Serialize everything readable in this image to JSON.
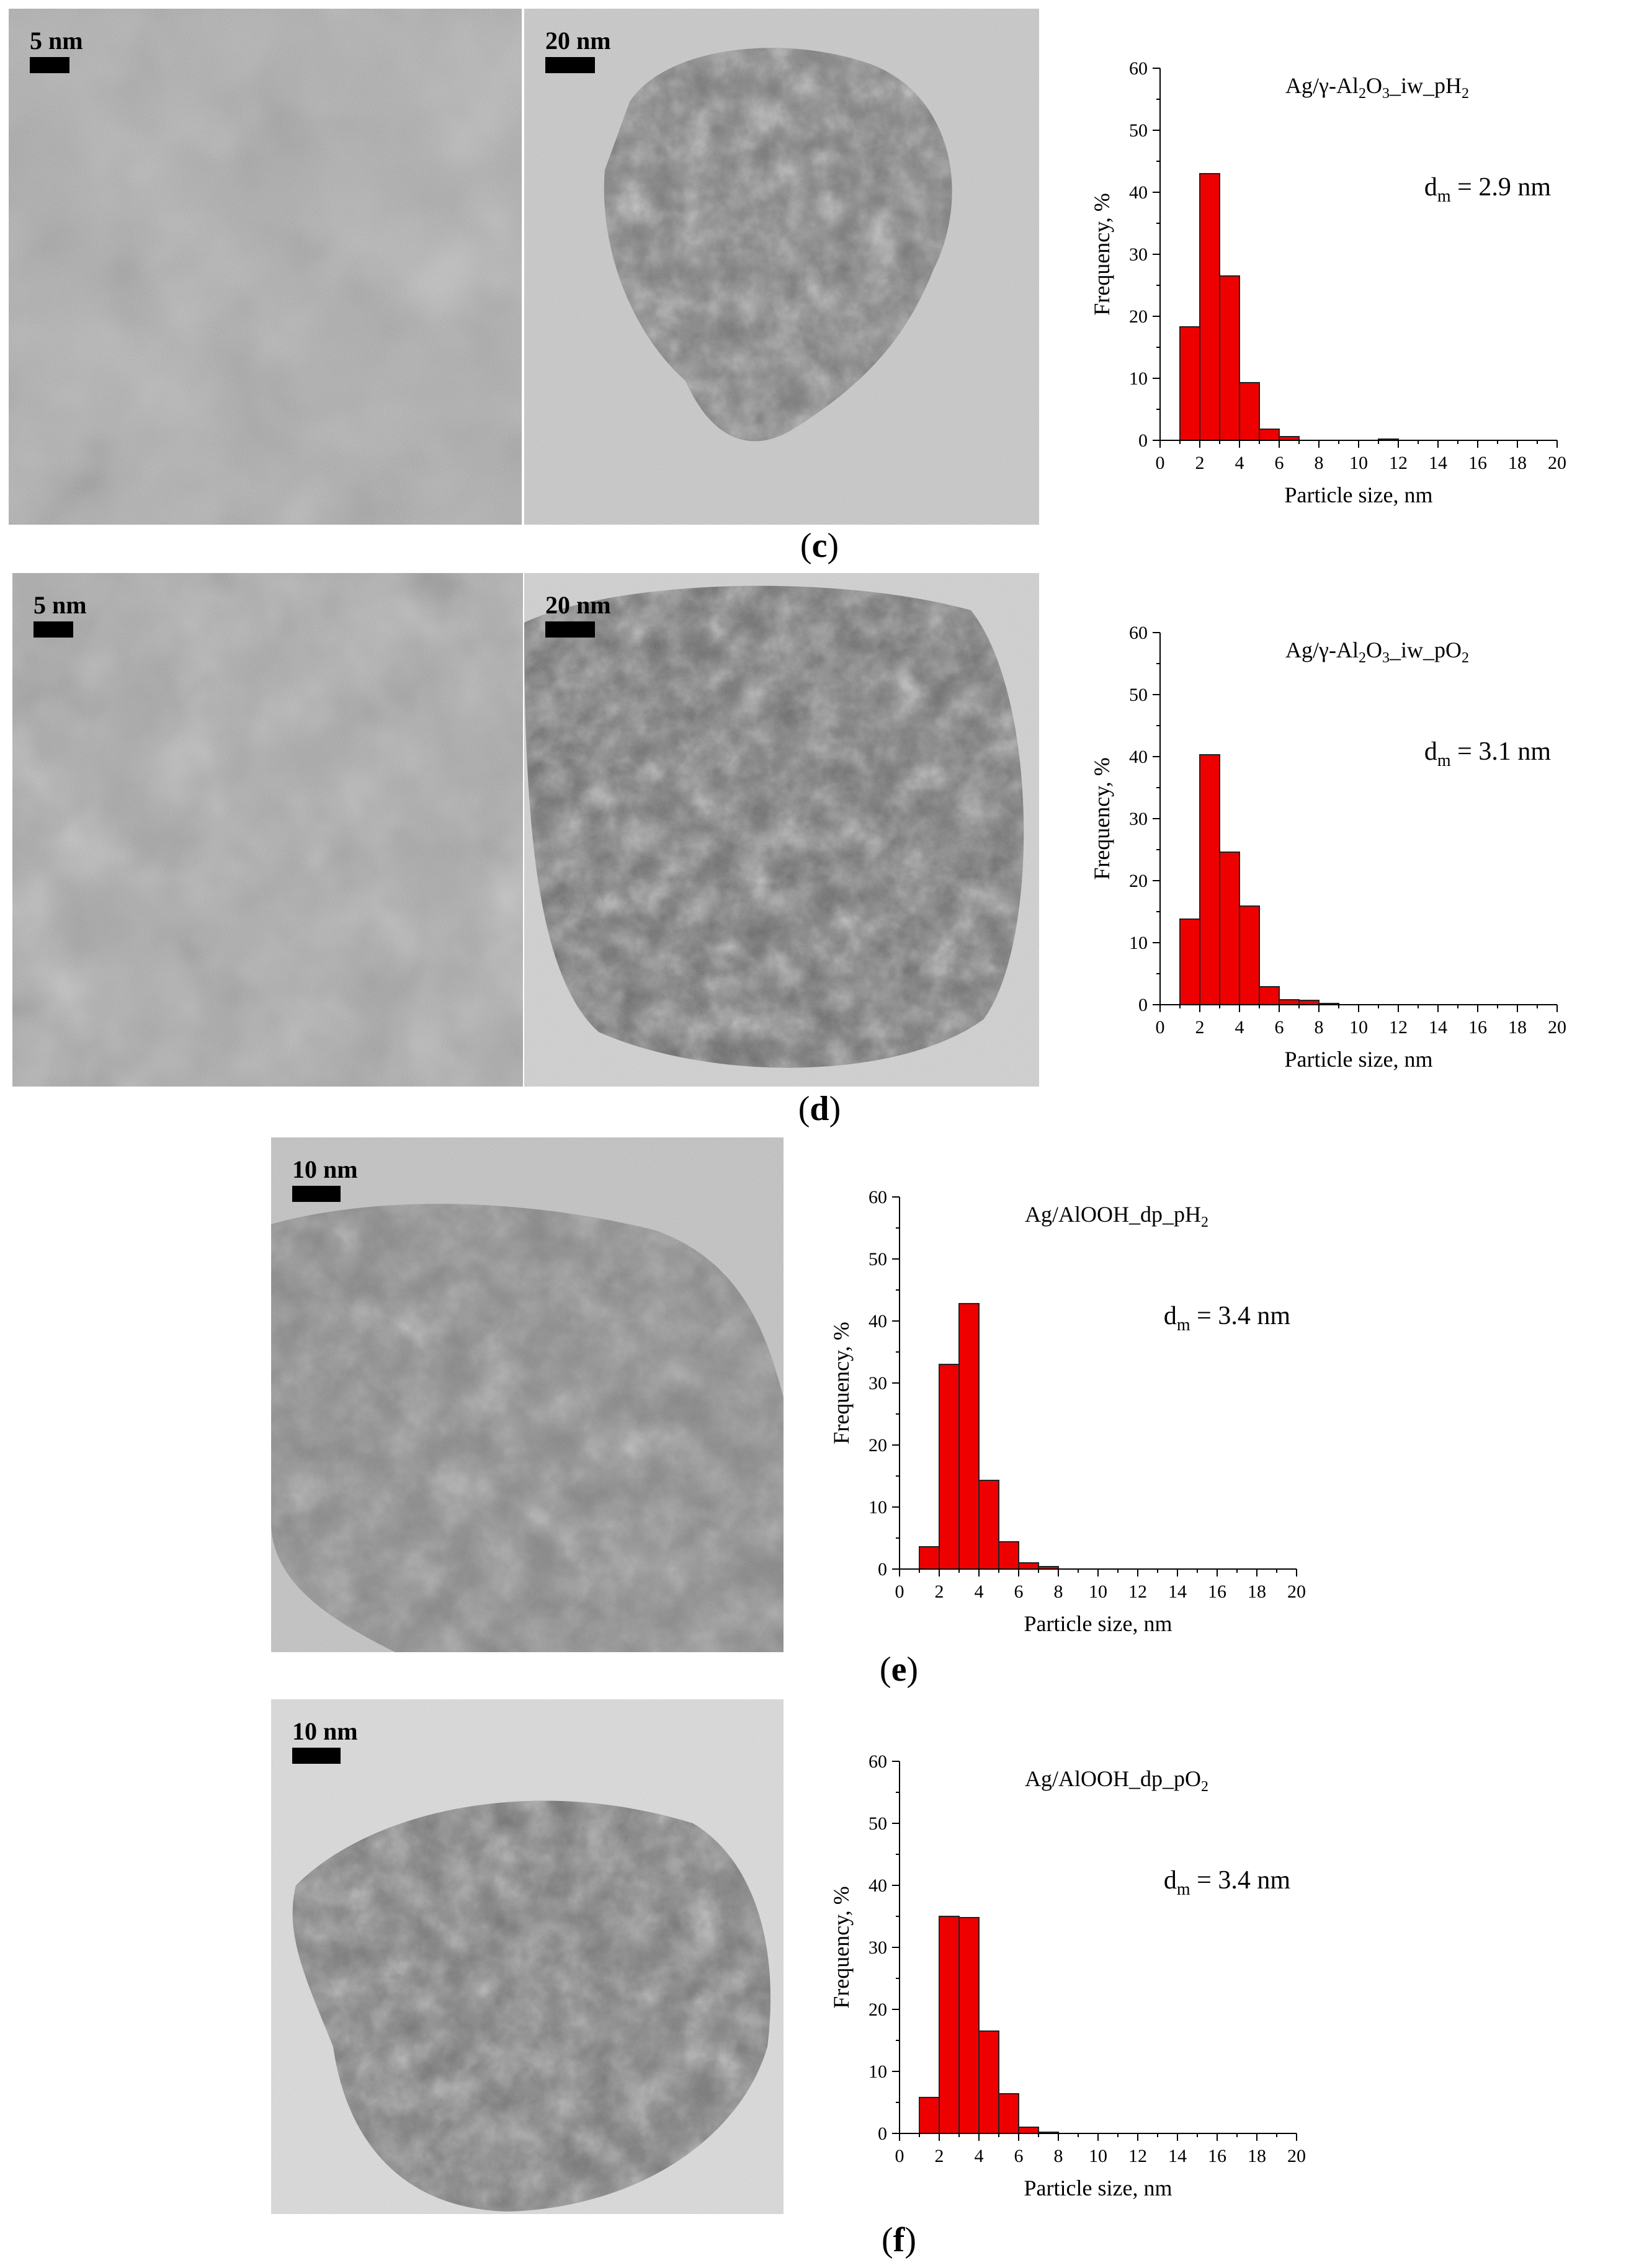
{
  "panels": [
    {
      "id": "c",
      "letter": "c",
      "micrographs": [
        {
          "scale_label": "5 nm",
          "watermark": "5 nm"
        },
        {
          "scale_label": "20 nm",
          "watermark": "20 nm"
        }
      ],
      "chart_data": {
        "type": "bar",
        "sample_prefix": "Ag/γ-Al",
        "sample_parts": [
          [
            "Ag/γ-Al",
            ""
          ],
          [
            "2",
            "sub"
          ],
          [
            "O",
            ""
          ],
          [
            "3",
            "sub"
          ],
          [
            "_iw_pH",
            ""
          ],
          [
            "2",
            "sub"
          ]
        ],
        "dm_text": "= 2.9 nm",
        "dm_symbol": "d",
        "dm_sub": "m",
        "xlabel": "Particle size, nm",
        "ylabel": "Frequency, %",
        "xlim": [
          0,
          20
        ],
        "ylim": [
          0,
          60
        ],
        "xticks": [
          0,
          2,
          4,
          6,
          8,
          10,
          12,
          14,
          16,
          18,
          20
        ],
        "yticks": [
          0,
          10,
          20,
          30,
          40,
          50,
          60
        ],
        "bin_width": 1,
        "bins": [
          {
            "x": 1.5,
            "y": 18.3
          },
          {
            "x": 2.5,
            "y": 43.0
          },
          {
            "x": 3.5,
            "y": 26.5
          },
          {
            "x": 4.5,
            "y": 9.3
          },
          {
            "x": 5.5,
            "y": 1.8
          },
          {
            "x": 6.5,
            "y": 0.6
          },
          {
            "x": 11.5,
            "y": 0.2
          }
        ]
      }
    },
    {
      "id": "d",
      "letter": "d",
      "micrographs": [
        {
          "scale_label": "5 nm",
          "watermark": "5 nm"
        },
        {
          "scale_label": "20 nm",
          "watermark": "20 nm"
        }
      ],
      "chart_data": {
        "type": "bar",
        "sample_parts": [
          [
            "Ag/γ-Al",
            ""
          ],
          [
            "2",
            "sub"
          ],
          [
            "O",
            ""
          ],
          [
            "3",
            "sub"
          ],
          [
            "_iw_pO",
            ""
          ],
          [
            "2",
            "sub"
          ]
        ],
        "dm_text": "= 3.1 nm",
        "dm_symbol": "d",
        "dm_sub": "m",
        "xlabel": "Particle size, nm",
        "ylabel": "Frequency, %",
        "xlim": [
          0,
          20
        ],
        "ylim": [
          0,
          60
        ],
        "xticks": [
          0,
          2,
          4,
          6,
          8,
          10,
          12,
          14,
          16,
          18,
          20
        ],
        "yticks": [
          0,
          10,
          20,
          30,
          40,
          50,
          60
        ],
        "bin_width": 1,
        "bins": [
          {
            "x": 1.5,
            "y": 13.8
          },
          {
            "x": 2.5,
            "y": 40.3
          },
          {
            "x": 3.5,
            "y": 24.6
          },
          {
            "x": 4.5,
            "y": 15.9
          },
          {
            "x": 5.5,
            "y": 2.9
          },
          {
            "x": 6.5,
            "y": 0.8
          },
          {
            "x": 7.5,
            "y": 0.7
          },
          {
            "x": 8.5,
            "y": 0.2
          }
        ]
      }
    },
    {
      "id": "e",
      "letter": "e",
      "micrographs": [
        {
          "scale_label": "10 nm",
          "watermark": "10 nm"
        }
      ],
      "chart_data": {
        "type": "bar",
        "sample_parts": [
          [
            "Ag/AlOOH_dp_pH",
            ""
          ],
          [
            "2",
            "sub"
          ]
        ],
        "dm_text": "= 3.4 nm",
        "dm_symbol": "d",
        "dm_sub": "m",
        "xlabel": "Particle size, nm",
        "ylabel": "Frequency, %",
        "xlim": [
          0,
          20
        ],
        "ylim": [
          0,
          60
        ],
        "xticks": [
          0,
          2,
          4,
          6,
          8,
          10,
          12,
          14,
          16,
          18,
          20
        ],
        "yticks": [
          0,
          10,
          20,
          30,
          40,
          50,
          60
        ],
        "bin_width": 1,
        "bins": [
          {
            "x": 1.5,
            "y": 3.6
          },
          {
            "x": 2.5,
            "y": 33.0
          },
          {
            "x": 3.5,
            "y": 42.8
          },
          {
            "x": 4.5,
            "y": 14.3
          },
          {
            "x": 5.5,
            "y": 4.4
          },
          {
            "x": 6.5,
            "y": 1.0
          },
          {
            "x": 7.5,
            "y": 0.4
          }
        ]
      }
    },
    {
      "id": "f",
      "letter": "f",
      "micrographs": [
        {
          "scale_label": "10 nm",
          "watermark": "10 nm"
        }
      ],
      "chart_data": {
        "type": "bar",
        "sample_parts": [
          [
            "Ag/AlOOH_dp_pO",
            ""
          ],
          [
            "2",
            "sub"
          ]
        ],
        "dm_text": "= 3.4 nm",
        "dm_symbol": "d",
        "dm_sub": "m",
        "xlabel": "Particle size, nm",
        "ylabel": "Frequency, %",
        "xlim": [
          0,
          20
        ],
        "ylim": [
          0,
          60
        ],
        "xticks": [
          0,
          2,
          4,
          6,
          8,
          10,
          12,
          14,
          16,
          18,
          20
        ],
        "yticks": [
          0,
          10,
          20,
          30,
          40,
          50,
          60
        ],
        "bin_width": 1,
        "bins": [
          {
            "x": 1.5,
            "y": 5.8
          },
          {
            "x": 2.5,
            "y": 35.0
          },
          {
            "x": 3.5,
            "y": 34.8
          },
          {
            "x": 4.5,
            "y": 16.5
          },
          {
            "x": 5.5,
            "y": 6.4
          },
          {
            "x": 6.5,
            "y": 1.0
          },
          {
            "x": 7.5,
            "y": 0.2
          }
        ]
      }
    }
  ],
  "colors": {
    "bar_fill": "#ee0000",
    "bar_stroke": "#222222",
    "axis": "#000000"
  }
}
